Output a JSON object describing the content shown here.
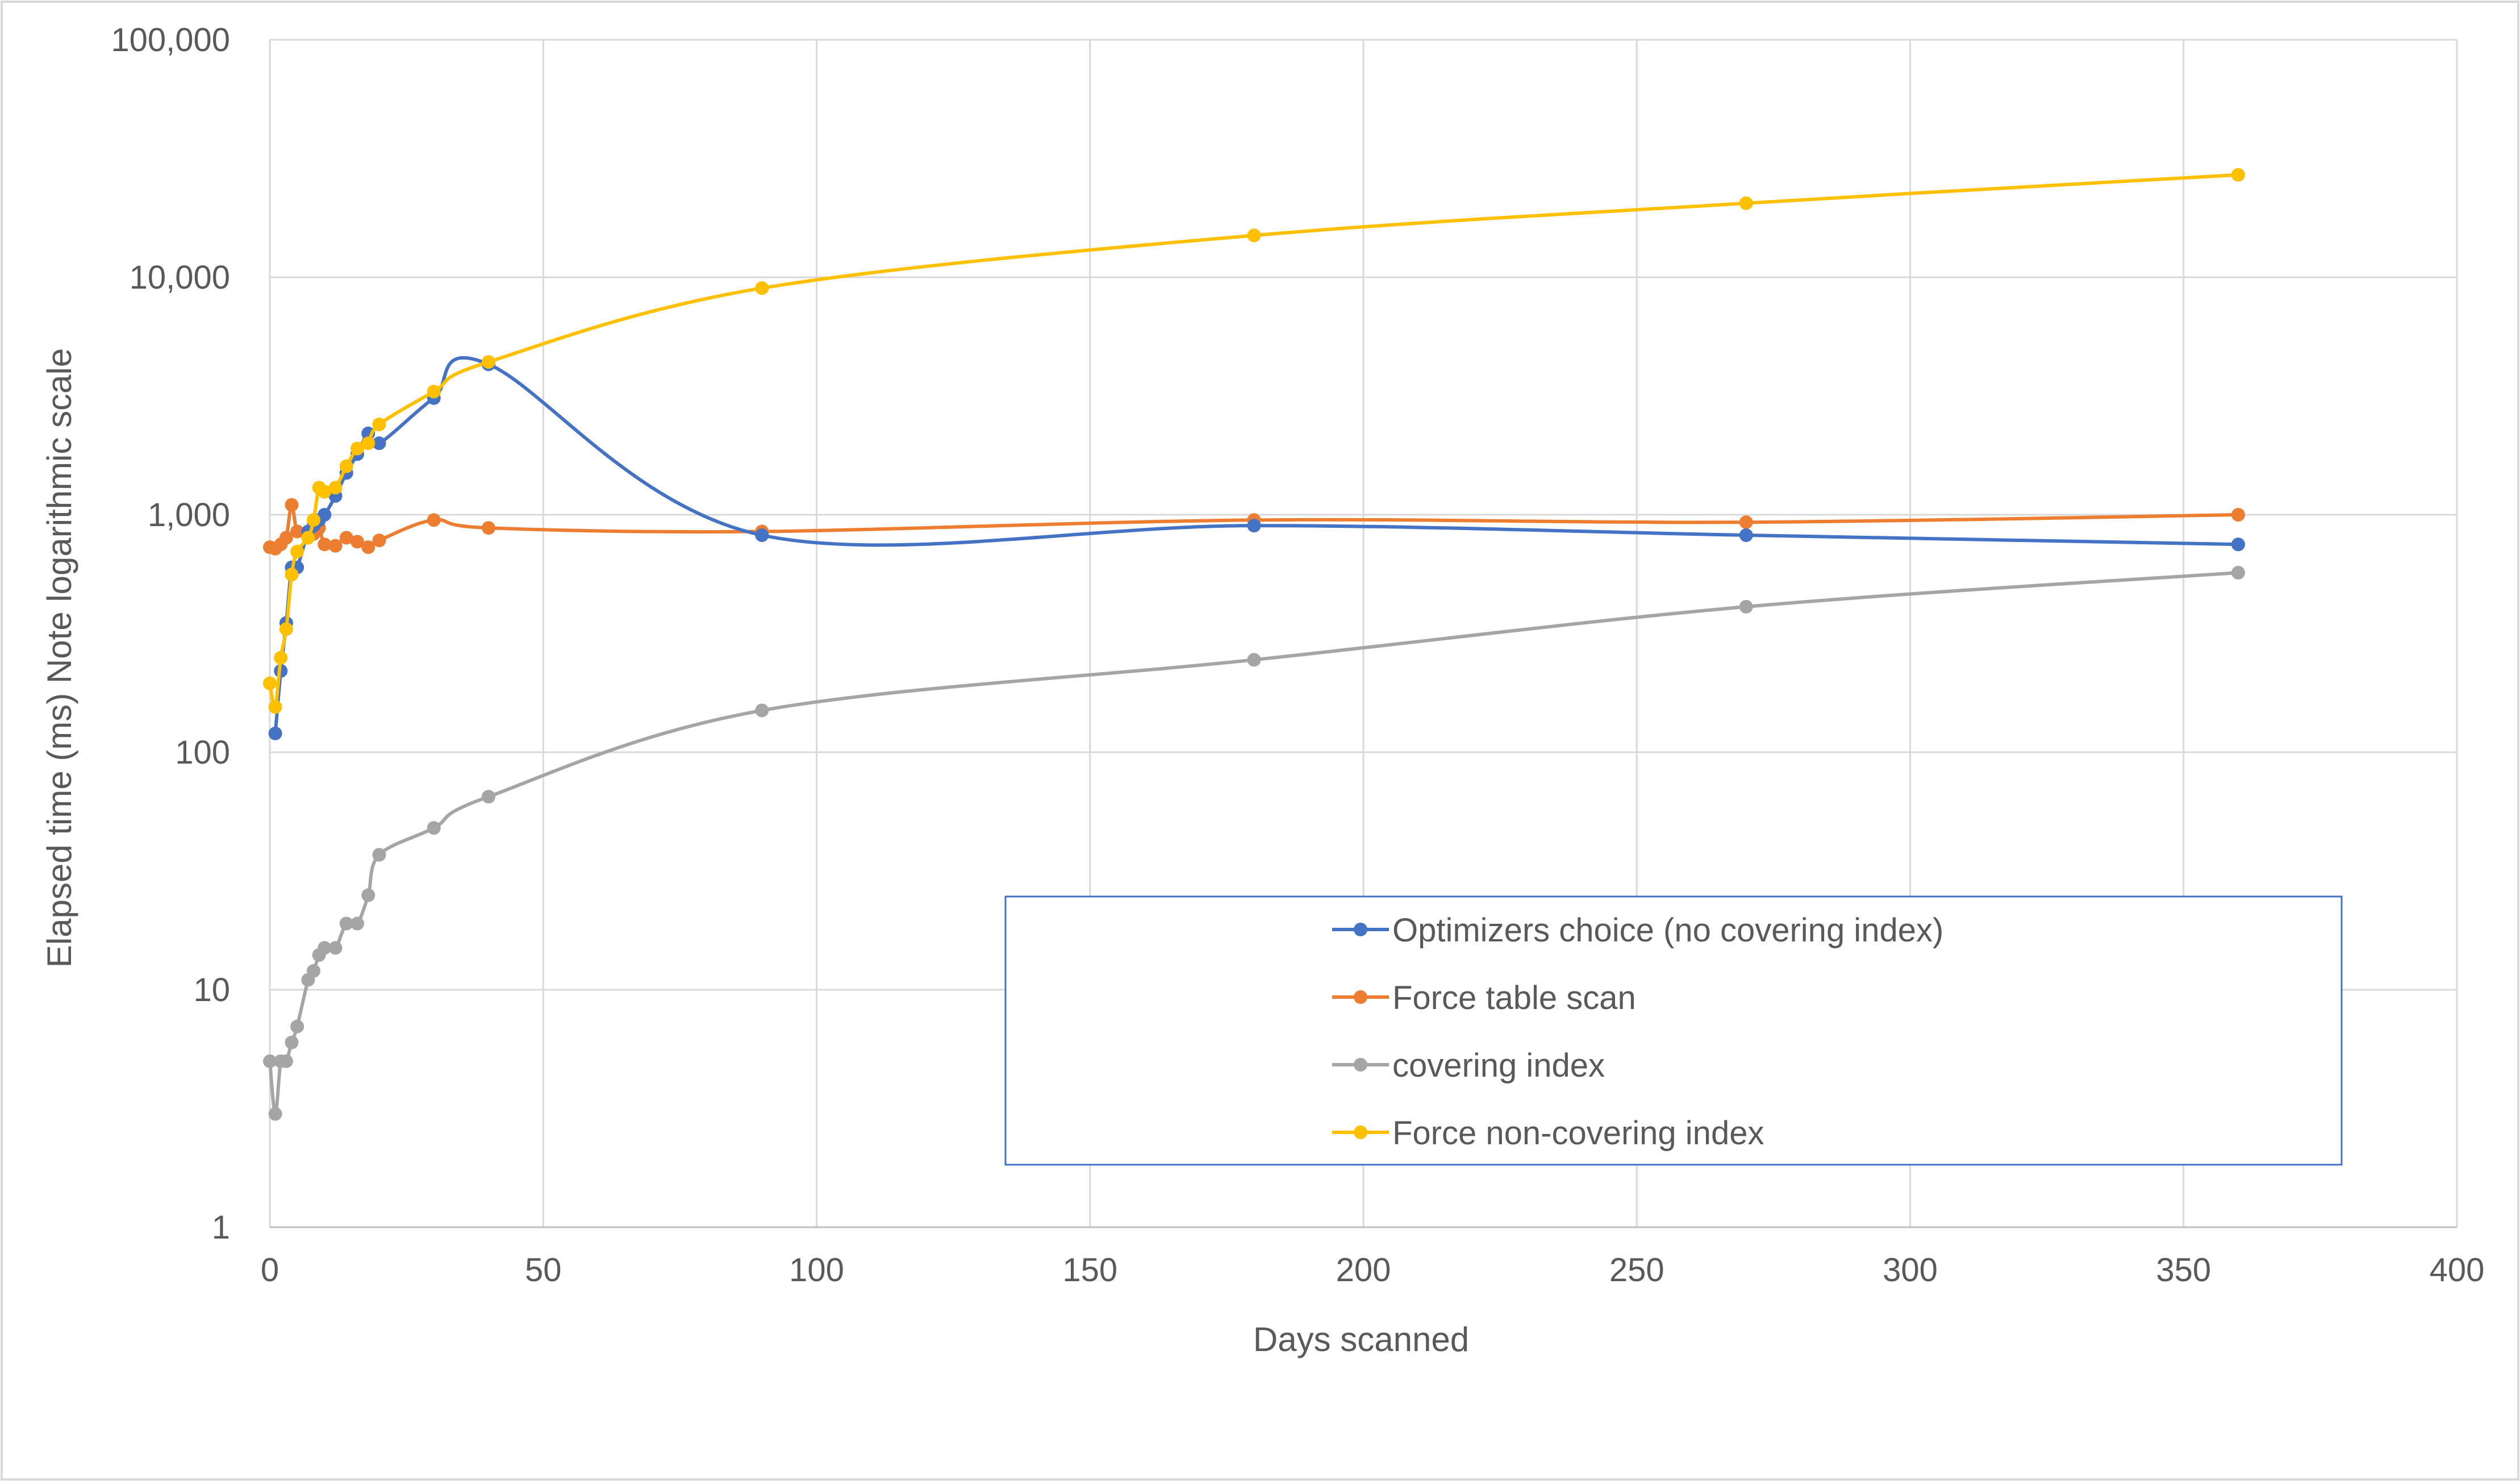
{
  "chart_data": {
    "type": "line",
    "scale": "log",
    "xlabel": "Days scanned",
    "ylabel": "Elapsed time (ms) Note logarithmic scale",
    "xlim": [
      0,
      400
    ],
    "ylim": [
      1,
      100000
    ],
    "x_ticks": [
      0,
      50,
      100,
      150,
      200,
      250,
      300,
      350,
      400
    ],
    "x_tick_labels": [
      "0",
      "50",
      "100",
      "150",
      "200",
      "250",
      "300",
      "350",
      "400"
    ],
    "y_ticks": [
      1,
      10,
      100,
      1000,
      10000,
      100000
    ],
    "y_tick_labels": [
      "1",
      "10",
      "100",
      "1,000",
      "10,000",
      "100,000"
    ],
    "grid": true,
    "legend_position": "lower-right",
    "series": [
      {
        "name": "Optimizers choice (no covering index)",
        "color": "#4472C4",
        "x": [
          1,
          2,
          3,
          4,
          5,
          7,
          8,
          9,
          10,
          12,
          14,
          16,
          18,
          20,
          30,
          40,
          90,
          180,
          270,
          360
        ],
        "y": [
          120,
          220,
          350,
          600,
          600,
          850,
          900,
          950,
          1000,
          1200,
          1500,
          1800,
          2200,
          2000,
          3100,
          4300,
          820,
          900,
          820,
          750
        ]
      },
      {
        "name": "Force table scan",
        "color": "#ED7D31",
        "x": [
          0,
          1,
          2,
          3,
          4,
          5,
          7,
          8,
          9,
          10,
          12,
          14,
          16,
          18,
          20,
          30,
          40,
          90,
          180,
          270,
          360
        ],
        "y": [
          730,
          720,
          750,
          800,
          1100,
          850,
          820,
          830,
          880,
          750,
          740,
          800,
          770,
          730,
          780,
          950,
          880,
          850,
          950,
          930,
          1000
        ]
      },
      {
        "name": "covering index",
        "color": "#A5A5A5",
        "x": [
          0,
          1,
          2,
          3,
          4,
          5,
          7,
          8,
          9,
          10,
          12,
          14,
          16,
          18,
          20,
          30,
          40,
          90,
          180,
          270,
          360
        ],
        "y": [
          5,
          3,
          5,
          5,
          6,
          7,
          11,
          12,
          14,
          15,
          15,
          19,
          19,
          25,
          37,
          48,
          65,
          150,
          245,
          410,
          570
        ]
      },
      {
        "name": "Force non-covering index",
        "color": "#FFC000",
        "x": [
          0,
          1,
          2,
          3,
          4,
          5,
          7,
          8,
          9,
          10,
          12,
          14,
          16,
          18,
          20,
          30,
          40,
          90,
          180,
          270,
          360
        ],
        "y": [
          195,
          155,
          250,
          330,
          560,
          700,
          800,
          950,
          1300,
          1250,
          1300,
          1600,
          1900,
          2000,
          2400,
          3300,
          4400,
          9000,
          15000,
          20500,
          27000
        ]
      }
    ]
  }
}
